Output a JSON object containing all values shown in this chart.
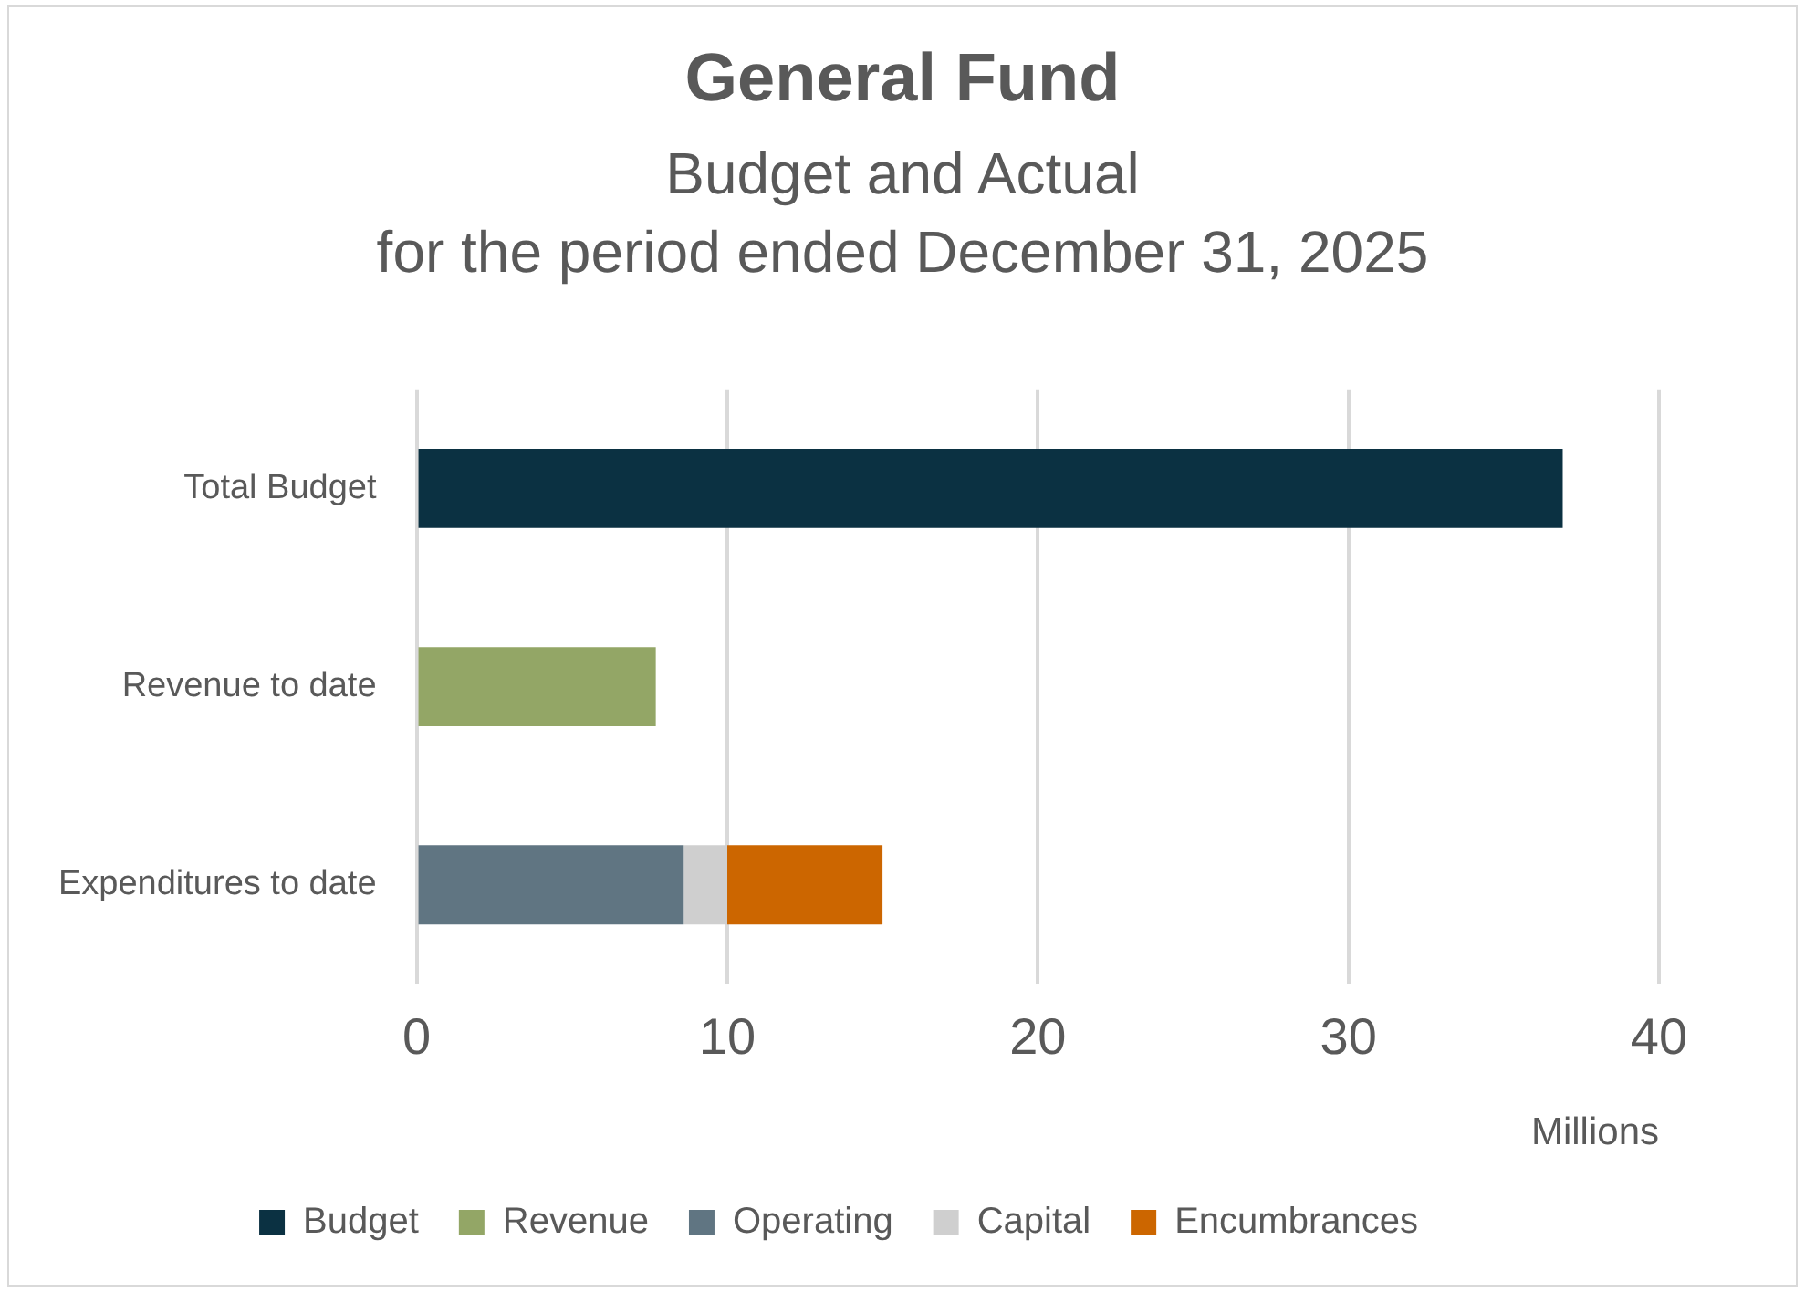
{
  "chart_data": {
    "type": "bar",
    "orientation": "horizontal",
    "stacked": true,
    "title": "General Fund",
    "subtitle": "Budget and Actual\nfor the period ended December 31, 2025",
    "xlabel": "Millions",
    "categories": [
      "Total Budget",
      "Revenue to date",
      "Expenditures to date"
    ],
    "series": [
      {
        "name": "Budget",
        "color": "#0b3142",
        "values": [
          36.9,
          null,
          null
        ]
      },
      {
        "name": "Revenue",
        "color": "#93a666",
        "values": [
          null,
          7.7,
          null
        ]
      },
      {
        "name": "Operating",
        "color": "#607582",
        "values": [
          null,
          null,
          8.6
        ]
      },
      {
        "name": "Capital",
        "color": "#cfcfcf",
        "values": [
          null,
          null,
          1.4
        ]
      },
      {
        "name": "Encumbrances",
        "color": "#cc6600",
        "values": [
          null,
          null,
          5.0
        ]
      }
    ],
    "xlim": [
      0,
      40
    ],
    "xticks": [
      0,
      10,
      20,
      30,
      40
    ],
    "grid": "x",
    "legend": "bottom"
  }
}
